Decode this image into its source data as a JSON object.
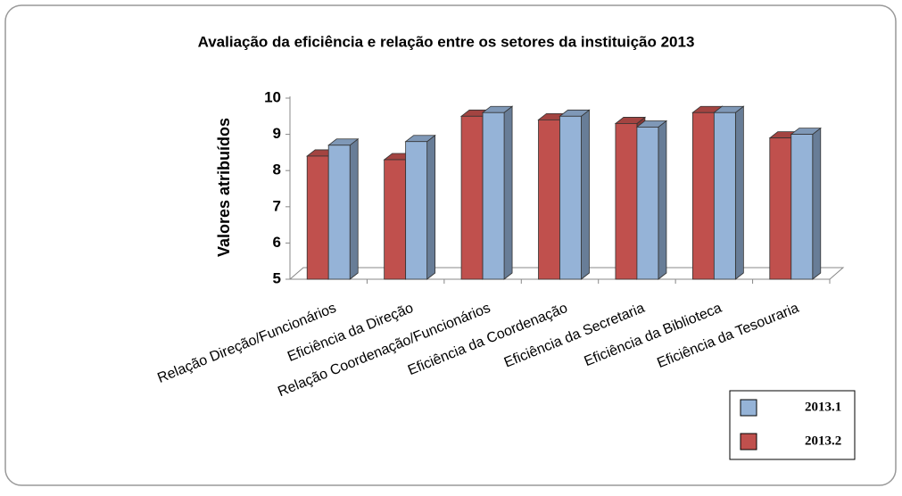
{
  "chart_data": {
    "type": "bar3d",
    "title": "Avaliação da eficiência e relação entre os setores da instituição 2013",
    "y_label": "Valores atribuídos",
    "categories": [
      "Relação Direção/Funcionários",
      "Eficiência da Direção",
      "Relação Coordenação/Funcionários",
      "Eficiência da Coordenação",
      "Eficiência da Secretaria",
      "Eficiência da Biblioteca",
      "Eficiência da Tesouraria"
    ],
    "series": [
      {
        "name": "2013.1",
        "color": "#95b3d7",
        "values": [
          8.7,
          8.8,
          9.6,
          9.5,
          9.2,
          9.6,
          9.0
        ]
      },
      {
        "name": "2013.2",
        "color": "#c0504d",
        "values": [
          8.4,
          8.3,
          9.5,
          9.4,
          9.3,
          9.6,
          8.9
        ]
      }
    ],
    "ylim": [
      5,
      10
    ],
    "yticks": [
      5,
      6,
      7,
      8,
      9,
      10
    ],
    "legend": "bottom-right"
  }
}
